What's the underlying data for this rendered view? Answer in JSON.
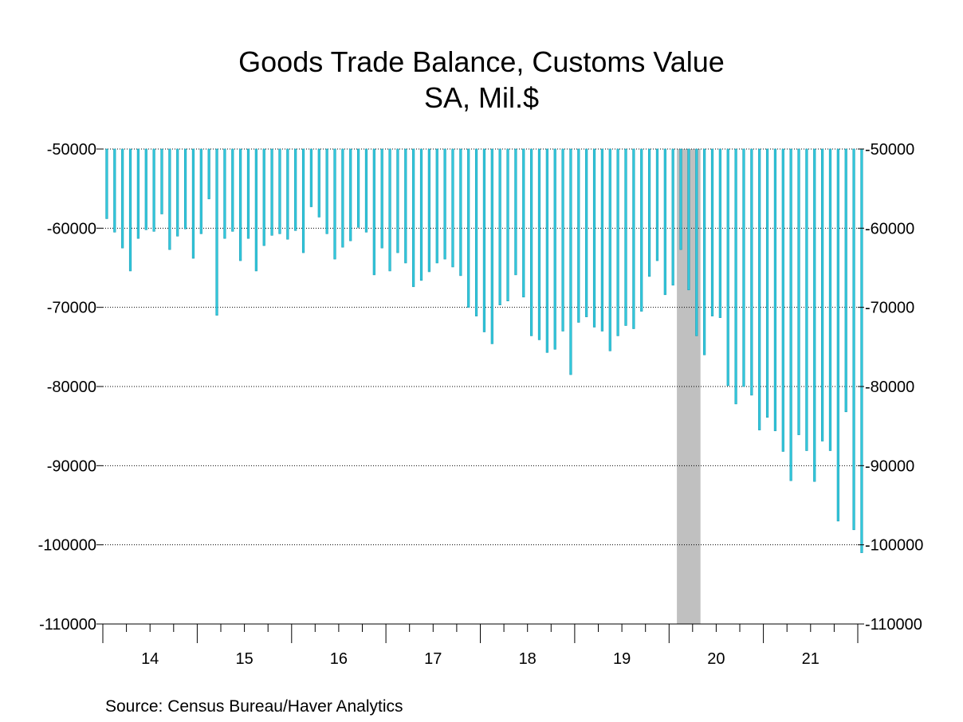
{
  "title": "Goods Trade Balance, Customs Value",
  "subtitle": "SA, Mil.$",
  "source": "Source:  Census Bureau/Haver Analytics",
  "colors": {
    "bar": "#33c8dc",
    "bar_edge": "#1a9db5",
    "recession": "#c0c0c0",
    "grid": "#000000"
  },
  "chart_data": {
    "type": "bar",
    "title": "Goods Trade Balance, Customs Value",
    "subtitle": "SA, Mil.$",
    "ylim": [
      -110000,
      -50000
    ],
    "y_ticks": [
      "-50000",
      "-60000",
      "-70000",
      "-80000",
      "-90000",
      "-100000",
      "-110000"
    ],
    "x_tick_labels": [
      "14",
      "15",
      "16",
      "17",
      "18",
      "19",
      "20",
      "21"
    ],
    "grid": "horizontal dotted",
    "bars_hang_from": -50000,
    "recession_shading": {
      "start": "2020-02",
      "end": "2020-04"
    },
    "start": "2014-01",
    "frequency": "monthly",
    "values": [
      -58800,
      -60500,
      -62500,
      -65400,
      -61300,
      -60200,
      -60400,
      -58200,
      -62700,
      -61000,
      -60100,
      -63800,
      -60700,
      -56300,
      -71000,
      -61300,
      -60400,
      -64100,
      -61300,
      -65400,
      -62200,
      -60900,
      -60700,
      -61400,
      -60300,
      -63100,
      -57300,
      -58600,
      -60700,
      -63900,
      -62400,
      -61600,
      -59900,
      -60500,
      -65900,
      -62500,
      -65400,
      -63100,
      -64400,
      -67400,
      -66600,
      -65500,
      -64400,
      -63900,
      -64900,
      -66000,
      -70000,
      -71100,
      -73100,
      -74600,
      -69700,
      -69200,
      -65900,
      -68700,
      -73600,
      -74100,
      -75700,
      -75300,
      -73000,
      -78500,
      -71900,
      -71200,
      -72500,
      -73000,
      -75500,
      -73600,
      -72300,
      -72700,
      -70500,
      -66100,
      -64100,
      -68400,
      -67200,
      -62700,
      -67800,
      -73600,
      -76000,
      -71100,
      -71300,
      -79900,
      -82200,
      -80000,
      -81100,
      -85500,
      -83900,
      -85600,
      -88200,
      -91900,
      -86100,
      -88100,
      -92000,
      -86900,
      -88100,
      -97000,
      -83200,
      -98100,
      -101000
    ]
  }
}
